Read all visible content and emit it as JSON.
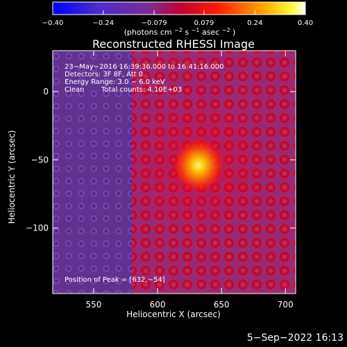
{
  "chart_data": {
    "type": "heatmap",
    "title": "Reconstructed RHESSI Image",
    "xlabel": "Heliocentric X (arcsec)",
    "ylabel": "Heliocentric Y (arcsec)",
    "xlim": [
      518,
      708
    ],
    "ylim": [
      -148,
      30
    ],
    "x_ticks": [
      550,
      600,
      650,
      700
    ],
    "y_ticks": [
      0,
      -50,
      -100
    ],
    "x_tick_labels": [
      "550",
      "600",
      "650",
      "700"
    ],
    "y_tick_labels": [
      "0",
      "−50",
      "−100"
    ],
    "colorbar": {
      "range": [
        -0.4,
        0.4
      ],
      "ticks": [
        -0.4,
        -0.24,
        -0.079,
        0.079,
        0.24,
        0.4
      ],
      "tick_labels": [
        "−0.40",
        "−0.24",
        "−0.079",
        "0.079",
        "0.24",
        "0.40"
      ],
      "unit_label_parts": {
        "a": "(photons cm",
        "b": "−2",
        "c": " s",
        "d": "−1",
        "e": " asec",
        "f": "−2",
        "g": ")"
      }
    },
    "peak": {
      "x": 632,
      "y": -54
    },
    "background_region": {
      "description": "",
      "x_edge": 580
    },
    "colors": {
      "low": "#0000ff",
      "mid_low": "#6a3bb2",
      "mid": "#f0001e",
      "high": "#ffff00",
      "top": "#ffffff"
    }
  },
  "image_info": {
    "line1": "23−May−2016 16:39:36.000 to 16:41:16.000",
    "line2": "Detectors: 3F 8F, Att 0",
    "line3": "Energy Range: 3.0 − 6.0 keV",
    "line4a": "Clean",
    "line4b": "Total counts: 4.10E+03",
    "peak_label": "Position of Peak = [632,−54]"
  },
  "footer": {
    "timestamp": "5−Sep−2022 16:13"
  }
}
